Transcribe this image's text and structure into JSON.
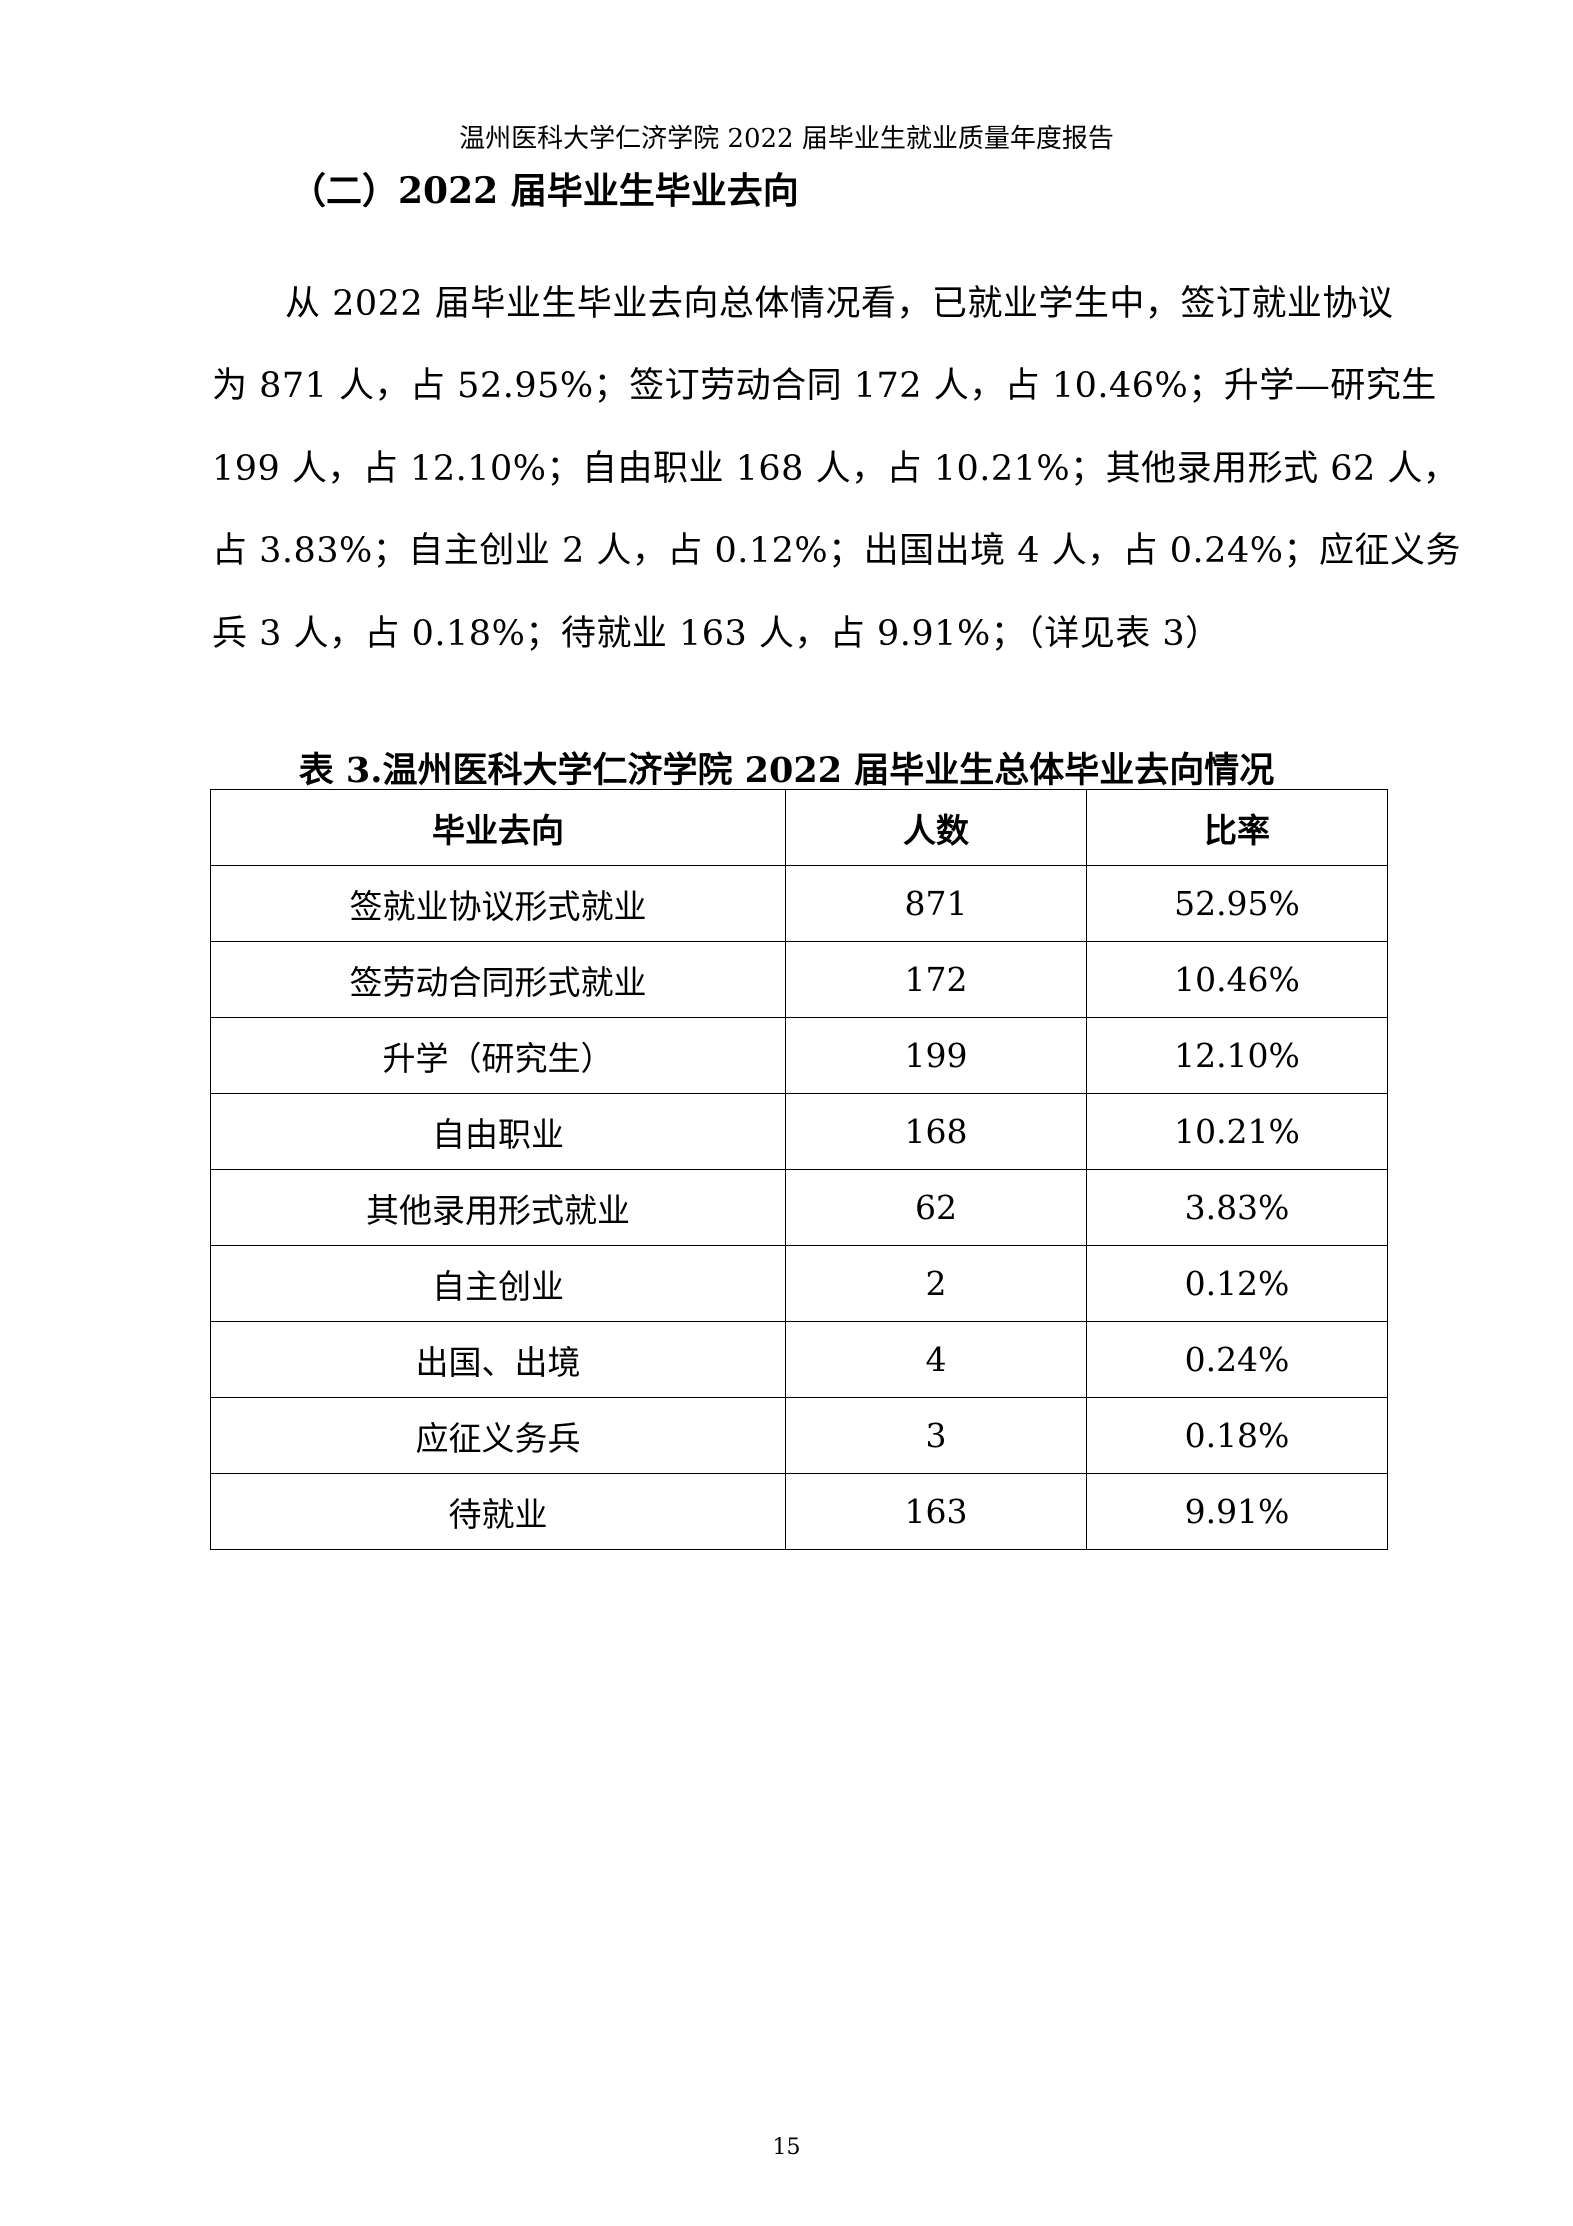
{
  "header": {
    "running_title": "温州医科大学仁济学院 2022 届毕业生就业质量年度报告"
  },
  "section": {
    "heading": "（二）2022 届毕业生毕业去向"
  },
  "paragraph": {
    "lines": [
      "从 2022 届毕业生毕业去向总体情况看，已就业学生中，签订就业协议",
      "为 871 人，占 52.95%；签订劳动合同 172 人，占 10.46%；升学—研究生",
      "199 人，占 12.10%；自由职业 168 人，占 10.21%；其他录用形式 62 人，",
      "占 3.83%；自主创业 2 人，占 0.12%；出国出境 4 人，占 0.24%；应征义务",
      "兵 3 人，占 0.18%；待就业 163 人，占 9.91%；（详见表 3）"
    ]
  },
  "table": {
    "caption": "表 3.温州医科大学仁济学院 2022 届毕业生总体毕业去向情况",
    "headers": [
      "毕业去向",
      "人数",
      "比率"
    ],
    "rows": [
      [
        "签就业协议形式就业",
        "871",
        "52.95%"
      ],
      [
        "签劳动合同形式就业",
        "172",
        "10.46%"
      ],
      [
        "升学（研究生）",
        "199",
        "12.10%"
      ],
      [
        "自由职业",
        "168",
        "10.21%"
      ],
      [
        "其他录用形式就业",
        "62",
        "3.83%"
      ],
      [
        "自主创业",
        "2",
        "0.12%"
      ],
      [
        "出国、出境",
        "4",
        "0.24%"
      ],
      [
        "应征义务兵",
        "3",
        "0.18%"
      ],
      [
        "待就业",
        "163",
        "9.91%"
      ]
    ]
  },
  "footer": {
    "page_number": "15"
  }
}
